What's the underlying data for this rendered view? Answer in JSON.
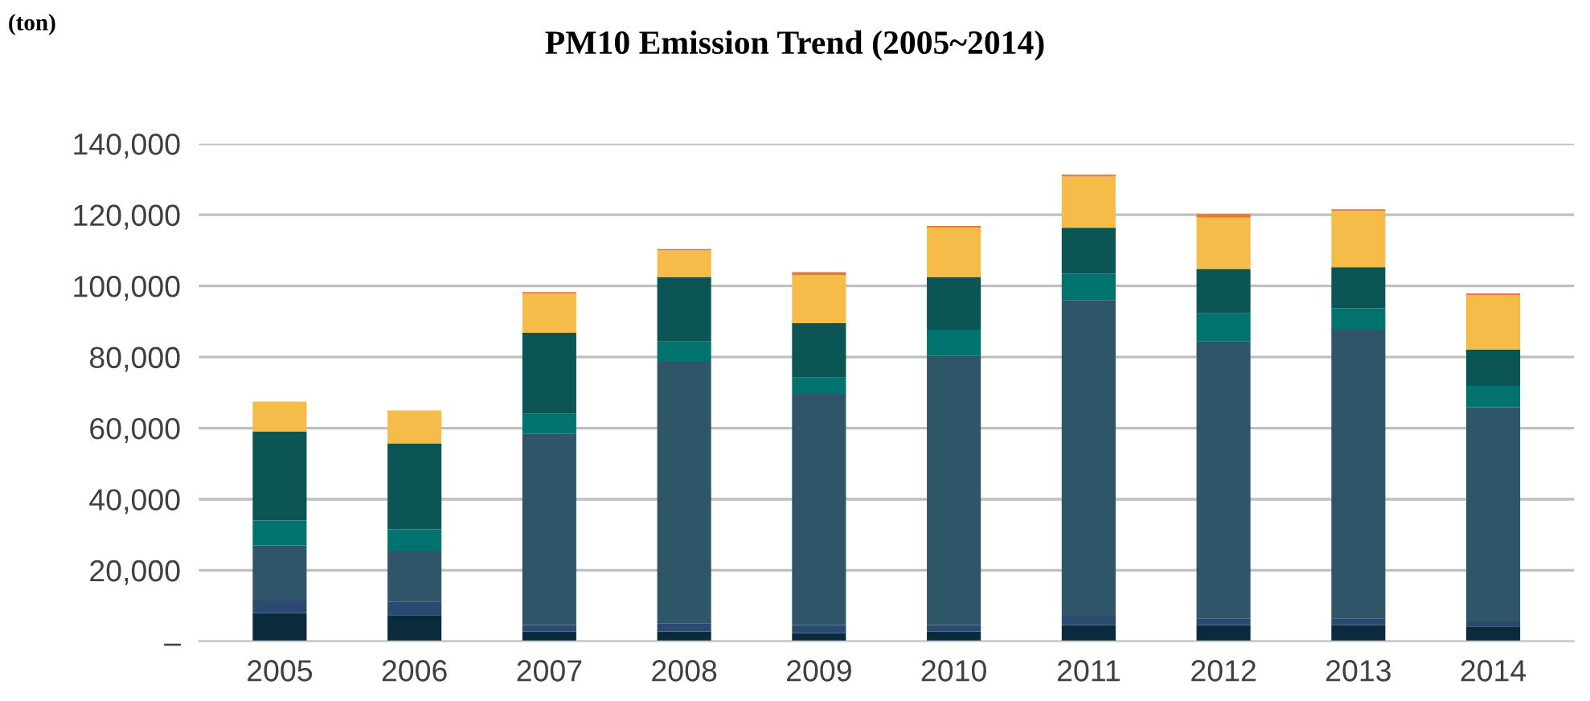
{
  "chart_data": {
    "type": "bar",
    "title": "PM10 Emission Trend (2005~2014)",
    "annotations": [
      "(ton)"
    ],
    "categories": [
      "2005",
      "2006",
      "2007",
      "2008",
      "2009",
      "2010",
      "2011",
      "2012",
      "2013",
      "2014"
    ],
    "stacked": true,
    "series": [
      {
        "color": "#0b2a3c",
        "values": [
          8000,
          7400,
          2800,
          2800,
          2300,
          2800,
          4600,
          4600,
          4600,
          4200
        ]
      },
      {
        "color": "#2a4a72",
        "values": [
          3500,
          3700,
          1800,
          2300,
          2300,
          1800,
          2400,
          1900,
          1900,
          1400
        ]
      },
      {
        "color": "#2e5668",
        "values": [
          15500,
          14400,
          53900,
          73800,
          65000,
          75700,
          89000,
          77900,
          81200,
          60300
        ]
      },
      {
        "color": "#00736e",
        "values": [
          7000,
          6000,
          5500,
          5500,
          4600,
          7400,
          7500,
          7900,
          6000,
          6000
        ]
      },
      {
        "color": "#0b5555",
        "values": [
          25000,
          24200,
          22800,
          18100,
          15300,
          14800,
          12900,
          12500,
          11600,
          10200
        ]
      },
      {
        "color": "#f5bc4a",
        "values": [
          8500,
          9300,
          11100,
          7500,
          13500,
          13900,
          14400,
          14400,
          15800,
          15300
        ]
      },
      {
        "color": "#e07b39",
        "values": [
          null,
          null,
          400,
          400,
          900,
          500,
          500,
          1000,
          500,
          500
        ]
      }
    ],
    "ylim": [
      0,
      140000
    ],
    "yticks": [
      {
        "value": 0,
        "label": "–"
      },
      {
        "value": 20000,
        "label": "20,000"
      },
      {
        "value": 40000,
        "label": "40,000"
      },
      {
        "value": 60000,
        "label": "60,000"
      },
      {
        "value": 80000,
        "label": "80,000"
      },
      {
        "value": 100000,
        "label": "100,000"
      },
      {
        "value": 120000,
        "label": "120,000"
      },
      {
        "value": 140000,
        "label": "140,000"
      }
    ],
    "grid": "y",
    "legend": false
  }
}
